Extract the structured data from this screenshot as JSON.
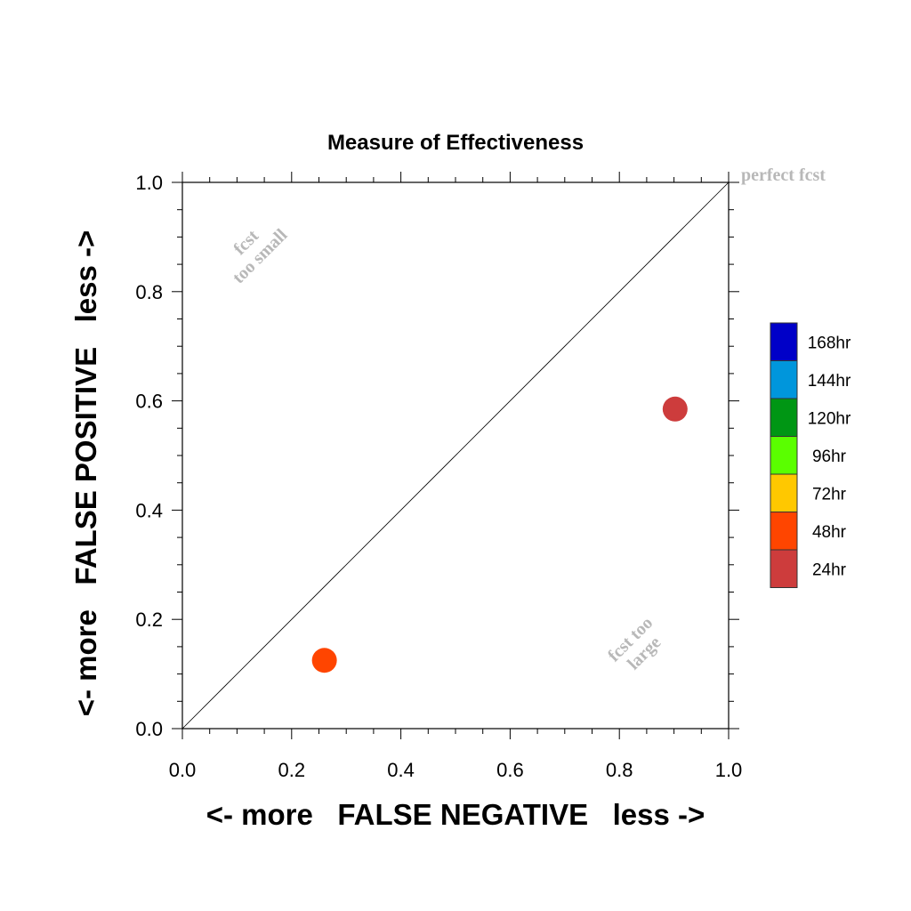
{
  "chart_data": {
    "type": "scatter",
    "title": "Measure of Effectiveness",
    "xlabel": "<- more   FALSE NEGATIVE   less ->",
    "ylabel": "<- more   FALSE POSITIVE   less ->",
    "xlim": [
      0,
      1
    ],
    "ylim": [
      0,
      1
    ],
    "x_ticks": [
      "0.0",
      "0.2",
      "0.4",
      "0.6",
      "0.8",
      "1.0"
    ],
    "y_ticks": [
      "0.0",
      "0.2",
      "0.4",
      "0.6",
      "0.8",
      "1.0"
    ],
    "diagonal_line": true,
    "grid": false,
    "series": [
      {
        "name": "48hr",
        "color": "#ff4500",
        "points": [
          {
            "x": 0.26,
            "y": 0.125
          }
        ]
      },
      {
        "name": "24hr",
        "color": "#cd3c3c",
        "points": [
          {
            "x": 0.902,
            "y": 0.585
          }
        ]
      }
    ],
    "annotations": {
      "perfect": "perfect fcst",
      "small_line1": "fcst",
      "small_line2": "too small",
      "large_line1": "fcst too",
      "large_line2": "large"
    },
    "legend": {
      "placement": "right",
      "items": [
        {
          "label": "168hr",
          "color": "#0000c8"
        },
        {
          "label": "144hr",
          "color": "#0096dc"
        },
        {
          "label": "120hr",
          "color": "#009614"
        },
        {
          "label": "96hr",
          "color": "#5aff00"
        },
        {
          "label": "72hr",
          "color": "#ffc800"
        },
        {
          "label": "48hr",
          "color": "#ff4500"
        },
        {
          "label": "24hr",
          "color": "#cd3c3c"
        }
      ]
    }
  }
}
